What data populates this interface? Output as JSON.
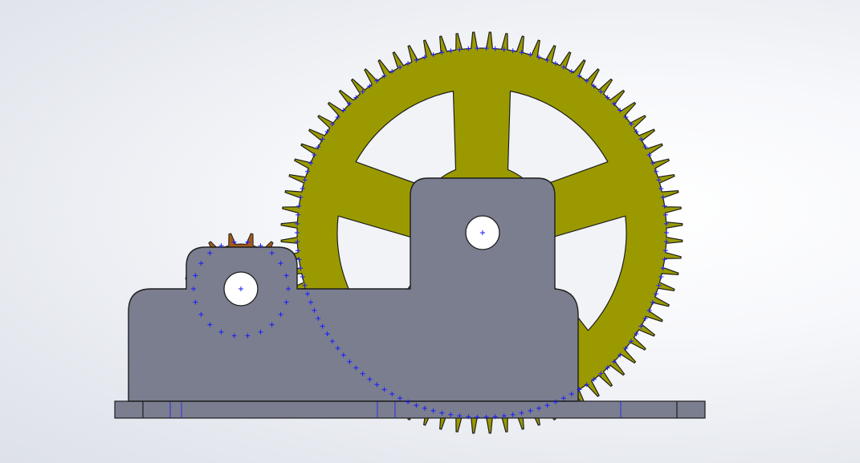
{
  "viewport": {
    "background": [
      "#ffffff",
      "#e6e9ef"
    ]
  },
  "colors": {
    "large_gear": "#9a9a00",
    "small_gear": "#a35a18",
    "housing": "#7a7e8f",
    "base_plate": "#7a7e8f",
    "edge": "#1e1e1e",
    "sketch_point": "#1a1aff"
  },
  "large_gear": {
    "teeth": 76,
    "spokes": 5
  },
  "small_gear": {
    "teeth": 16
  },
  "sketch_points": {
    "small_circle_count": 22,
    "large_circle_count": 130
  }
}
